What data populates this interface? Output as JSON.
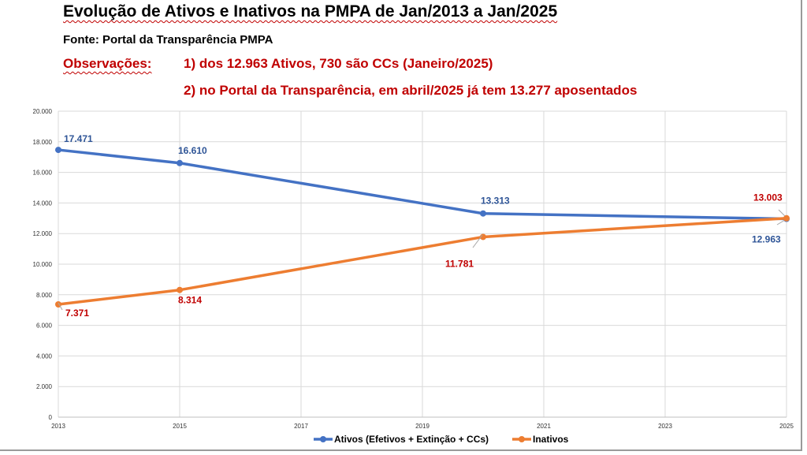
{
  "header": {
    "title": "Evolução de Ativos e Inativos na PMPA de Jan/2013 a Jan/2025",
    "source": "Fonte: Portal da Transparência PMPA",
    "obs_label": "Observações:",
    "obs_1": "1) dos 12.963 Ativos, 730 são CCs (Janeiro/2025)",
    "obs_2": "2) no Portal da Transparência, em abril/2025 já tem 13.277 aposentados"
  },
  "chart_data": {
    "type": "line",
    "title": "",
    "xlabel": "",
    "ylabel": "",
    "xlim": [
      2013,
      2025
    ],
    "ylim": [
      0,
      20000
    ],
    "x_ticks": [
      "2013",
      "2015",
      "2017",
      "2019",
      "2021",
      "2023",
      "2025"
    ],
    "y_ticks": [
      "0",
      "2.000",
      "4.000",
      "6.000",
      "8.000",
      "10.000",
      "12.000",
      "14.000",
      "16.000",
      "18.000",
      "20.000"
    ],
    "grid": true,
    "legend_position": "bottom",
    "series": [
      {
        "name": "Ativos (Efetivos + Extinção + CCs)",
        "color": "#4472c4",
        "label_color": "#2f5597",
        "points": [
          {
            "x": 2013,
            "y": 17471,
            "label": "17.471"
          },
          {
            "x": 2015,
            "y": 16610,
            "label": "16.610"
          },
          {
            "x": 2020,
            "y": 13313,
            "label": "13.313"
          },
          {
            "x": 2025,
            "y": 12963,
            "label": "12.963"
          }
        ]
      },
      {
        "name": "Inativos",
        "color": "#ed7d31",
        "label_color": "#c00000",
        "points": [
          {
            "x": 2013,
            "y": 7371,
            "label": "7.371"
          },
          {
            "x": 2015,
            "y": 8314,
            "label": "8.314"
          },
          {
            "x": 2020,
            "y": 11781,
            "label": "11.781"
          },
          {
            "x": 2025,
            "y": 13003,
            "label": "13.003"
          }
        ]
      }
    ]
  }
}
